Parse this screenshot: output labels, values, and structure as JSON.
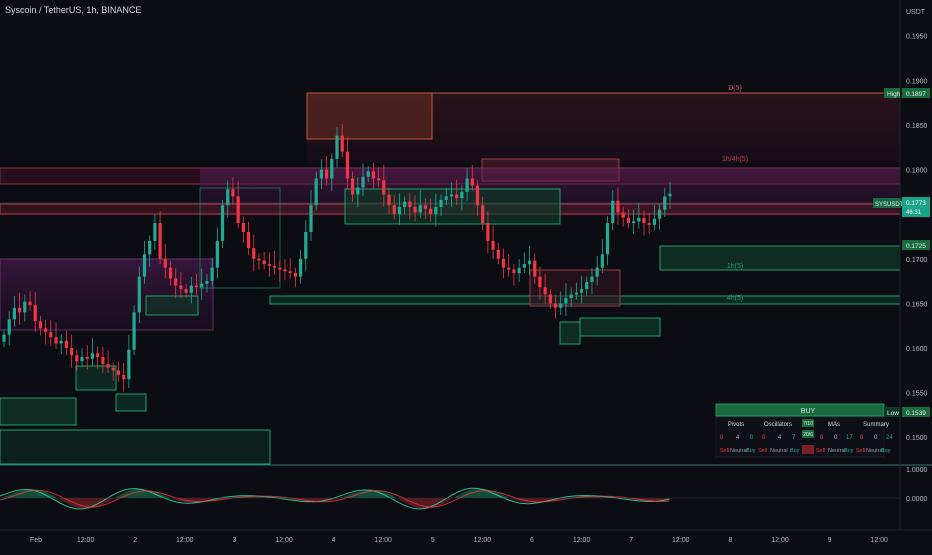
{
  "symbol": {
    "title": "Syscoin / TetherUS, 1h, BINANCE"
  },
  "price_axis": {
    "unit": "USDT",
    "ticks": [
      "0.1950",
      "0.1900",
      "0.1850",
      "0.1800",
      "0.1750",
      "0.1700",
      "0.1650",
      "0.1600",
      "0.1550",
      "0.1500"
    ]
  },
  "time_axis": {
    "ticks": [
      "Feb",
      "12:00",
      "2",
      "12:00",
      "3",
      "12:00",
      "4",
      "12:00",
      "5",
      "12:00",
      "6",
      "12:00",
      "7",
      "12:00",
      "8",
      "12:00",
      "9",
      "12:00"
    ]
  },
  "price_tags": {
    "high_label": "High",
    "high_value": "0.1897",
    "current_symbol": "SYSUSDT",
    "current_value": "0.1773",
    "countdown": "46:31",
    "support_value": "0.1725",
    "low_label": "Low",
    "low_value": "0.1539"
  },
  "zone_labels": {
    "d": "D(5)",
    "r1": "1h/4h(5)",
    "s1": "1h(5)",
    "s4": "4h(5)"
  },
  "oscillator": {
    "ticks": [
      "1.0000",
      "0.0000"
    ]
  },
  "summary_widget": {
    "header": "BUY",
    "columns": [
      "Pivots",
      "Oscillators",
      "MAs",
      "Summary"
    ],
    "highlight_values": [
      "7/10",
      "20/6"
    ],
    "rows": [
      {
        "label": "Pivots",
        "values": [
          "0",
          "4",
          "0"
        ]
      },
      {
        "label": "Oscillators",
        "values": [
          "0",
          "4",
          "7"
        ]
      },
      {
        "label": "MAs",
        "values": [
          "0",
          "0",
          "17"
        ]
      },
      {
        "label": "Summary",
        "values": [
          "0",
          "0",
          "24"
        ]
      }
    ],
    "footer": [
      "Sell",
      "Neutral",
      "Buy"
    ]
  },
  "colors": {
    "background": "#0b0d12",
    "up": "#22ab94",
    "down": "#f23645",
    "resistance": "#b33a48",
    "support": "#1b8a5a",
    "purple": "#6b2a6e"
  },
  "chart_data": {
    "type": "candlestick",
    "title": "Syscoin / TetherUS, 1h, BINANCE",
    "y_unit": "USDT",
    "ylim": [
      0.147,
      0.199
    ],
    "x_ticks": [
      "Feb",
      "12:00",
      "2",
      "12:00",
      "3",
      "12:00",
      "4",
      "12:00",
      "5",
      "12:00",
      "6",
      "12:00",
      "7",
      "12:00",
      "8",
      "12:00",
      "9",
      "12:00"
    ],
    "series": [
      {
        "name": "SYSUSDT",
        "close_path": [
          0.1615,
          0.1632,
          0.1645,
          0.164,
          0.1652,
          0.1648,
          0.163,
          0.1622,
          0.1618,
          0.1612,
          0.1605,
          0.1608,
          0.16,
          0.1592,
          0.1585,
          0.159,
          0.1588,
          0.1594,
          0.159,
          0.1582,
          0.1578,
          0.1575,
          0.157,
          0.1565,
          0.1598,
          0.164,
          0.168,
          0.1705,
          0.172,
          0.174,
          0.17,
          0.169,
          0.1678,
          0.167,
          0.1666,
          0.1662,
          0.167,
          0.1668,
          0.1672,
          0.1675,
          0.169,
          0.172,
          0.176,
          0.1778,
          0.177,
          0.174,
          0.173,
          0.1712,
          0.17,
          0.1698,
          0.1694,
          0.1692,
          0.169,
          0.1688,
          0.1686,
          0.1684,
          0.168,
          0.17,
          0.173,
          0.176,
          0.179,
          0.18,
          0.179,
          0.1812,
          0.1838,
          0.182,
          0.179,
          0.1772,
          0.178,
          0.1792,
          0.1798,
          0.179,
          0.1788,
          0.1772,
          0.176,
          0.175,
          0.1758,
          0.1764,
          0.1758,
          0.1752,
          0.176,
          0.1756,
          0.175,
          0.1758,
          0.1766,
          0.177,
          0.1772,
          0.1768,
          0.1775,
          0.179,
          0.1782,
          0.176,
          0.174,
          0.172,
          0.171,
          0.17,
          0.169,
          0.1688,
          0.1684,
          0.169,
          0.1694,
          0.1698,
          0.168,
          0.1668,
          0.166,
          0.165,
          0.1645,
          0.165,
          0.1656,
          0.166,
          0.1662,
          0.1666,
          0.1674,
          0.168,
          0.169,
          0.1705,
          0.174,
          0.1765,
          0.1752,
          0.1746,
          0.174,
          0.1742,
          0.1746,
          0.174,
          0.1738,
          0.1745,
          0.1755,
          0.177,
          0.1773
        ]
      }
    ],
    "high": 0.1897,
    "low": 0.1539,
    "current": 0.1773,
    "support_level": 0.1725,
    "zones": [
      {
        "kind": "resistance",
        "label": "D(5)",
        "top": 0.1897,
        "bottom": 0.182
      },
      {
        "kind": "resistance",
        "label": "1h/4h(5)",
        "top": 0.1812,
        "bottom": 0.1795
      },
      {
        "kind": "support",
        "label": "1h(5)",
        "top": 0.1724,
        "bottom": 0.17
      },
      {
        "kind": "support",
        "label": "4h(5)",
        "top": 0.1666,
        "bottom": 0.1662
      }
    ]
  }
}
